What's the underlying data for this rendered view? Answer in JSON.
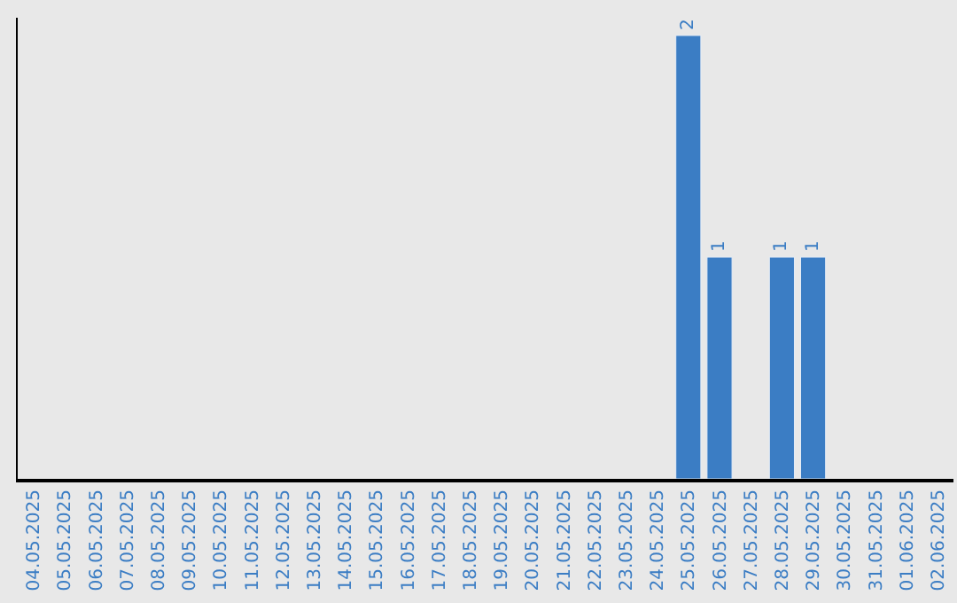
{
  "chart_data": {
    "type": "bar",
    "categories": [
      "04.05.2025",
      "05.05.2025",
      "06.05.2025",
      "07.05.2025",
      "08.05.2025",
      "09.05.2025",
      "10.05.2025",
      "11.05.2025",
      "12.05.2025",
      "13.05.2025",
      "14.05.2025",
      "15.05.2025",
      "16.05.2025",
      "17.05.2025",
      "18.05.2025",
      "19.05.2025",
      "20.05.2025",
      "21.05.2025",
      "22.05.2025",
      "23.05.2025",
      "24.05.2025",
      "25.05.2025",
      "26.05.2025",
      "27.05.2025",
      "28.05.2025",
      "29.05.2025",
      "30.05.2025",
      "31.05.2025",
      "01.06.2025",
      "02.06.2025"
    ],
    "values": [
      null,
      null,
      null,
      null,
      null,
      null,
      null,
      null,
      null,
      null,
      null,
      null,
      null,
      null,
      null,
      null,
      null,
      null,
      null,
      null,
      null,
      2,
      1,
      null,
      1,
      1,
      null,
      null,
      null,
      null
    ],
    "data_labels": true,
    "color": "#3b7dc4",
    "tick_labels": "x",
    "grid": false,
    "legend": false
  }
}
